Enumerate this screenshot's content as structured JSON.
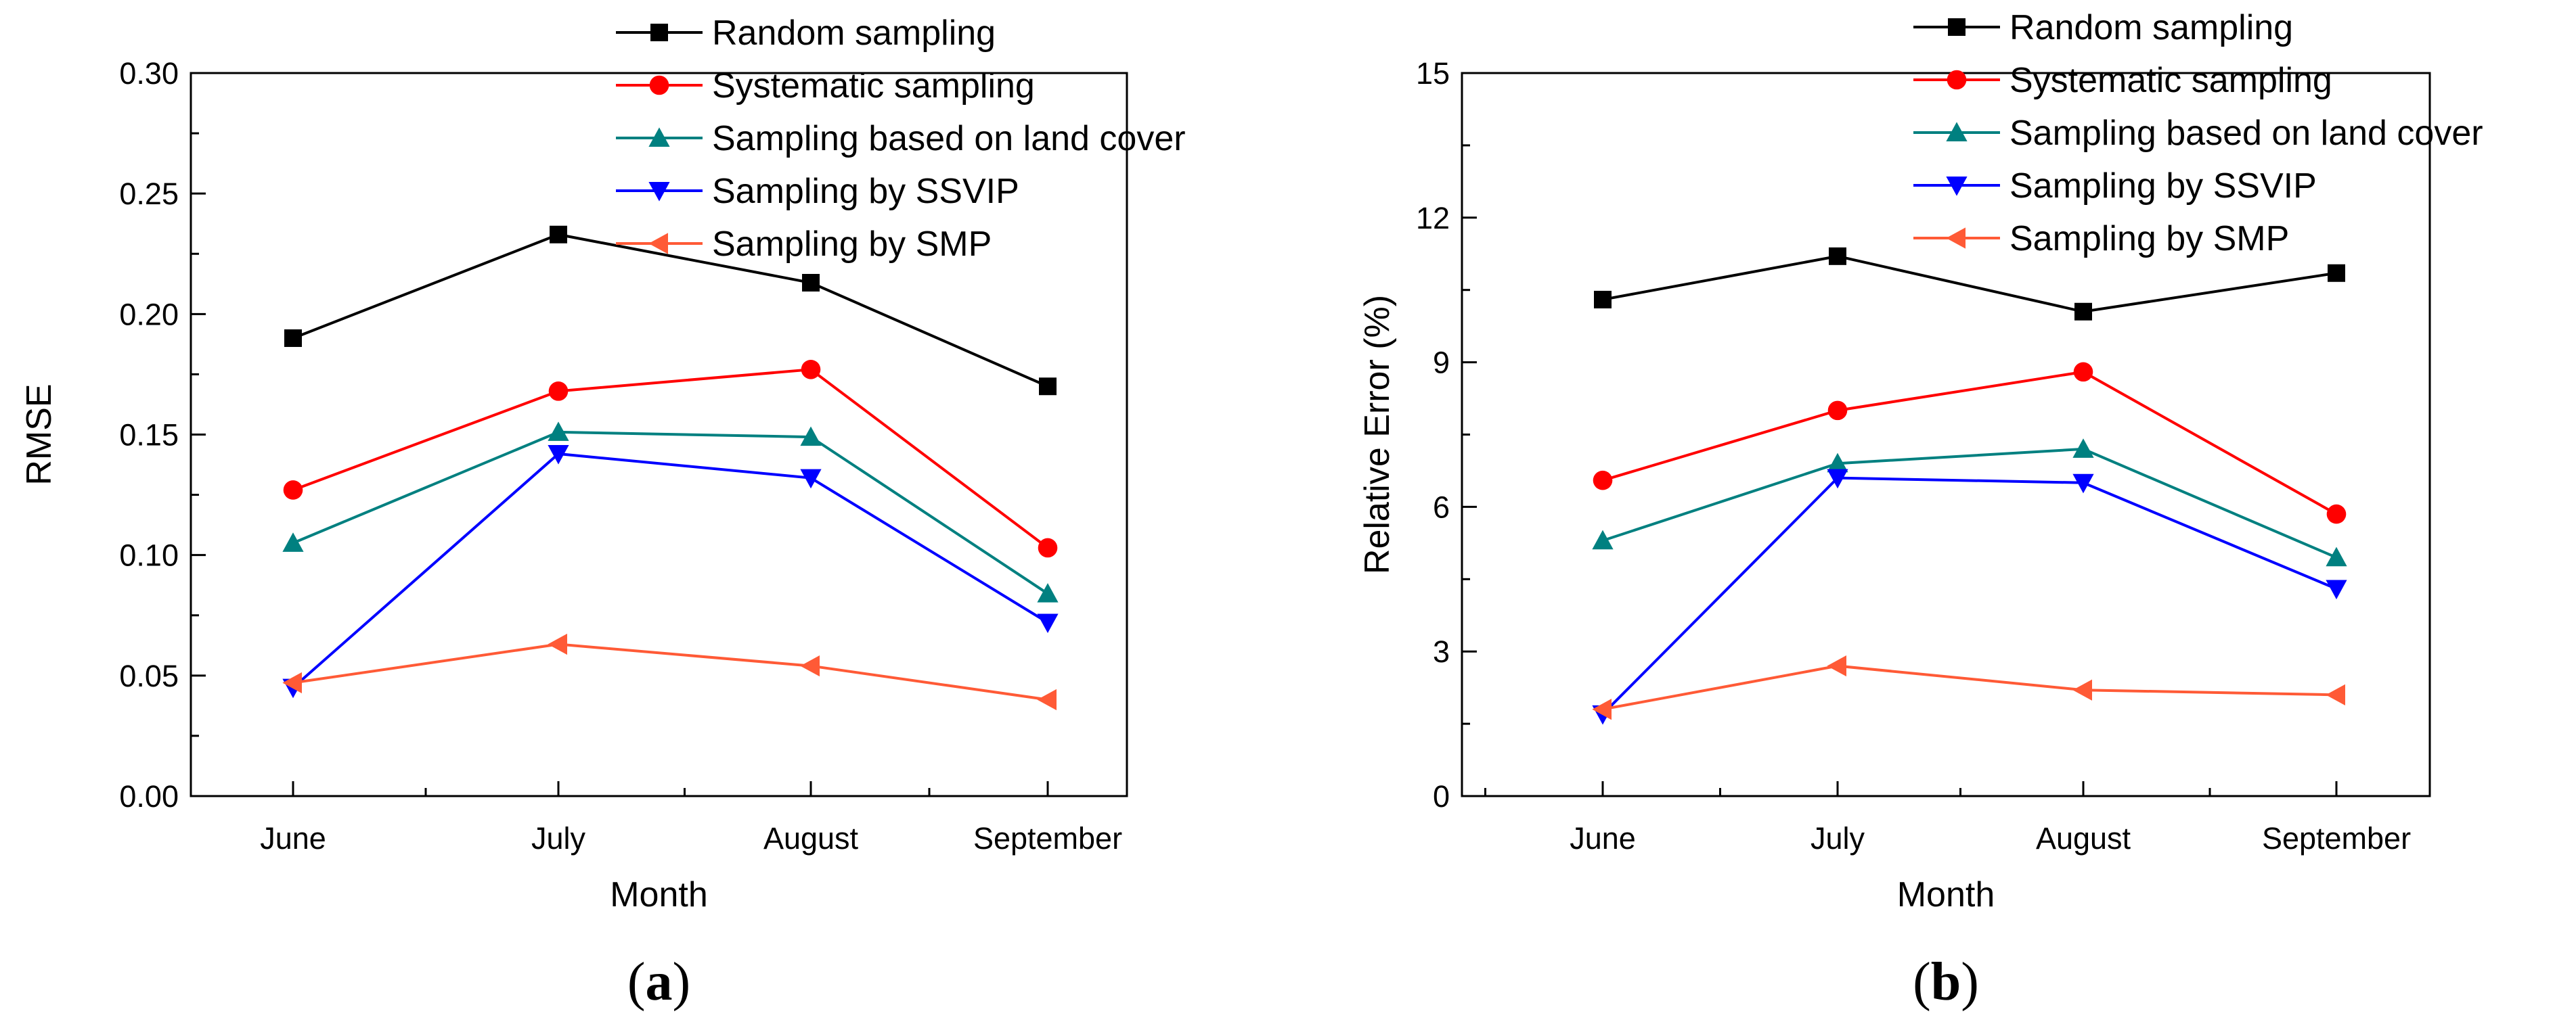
{
  "chart_data": [
    {
      "type": "line",
      "panel_label": "a",
      "categories": [
        "June",
        "July",
        "August",
        "September"
      ],
      "xlabel": "Month",
      "ylabel": "RMSE",
      "ylim": [
        0,
        0.3
      ],
      "yticks": [
        0.0,
        0.05,
        0.1,
        0.15,
        0.2,
        0.25,
        0.3
      ],
      "ytick_labels": [
        "0.00",
        "0.05",
        "0.10",
        "0.15",
        "0.20",
        "0.25",
        "0.30"
      ],
      "grid": false,
      "legend_position": "top-right",
      "series": [
        {
          "name": "Random sampling",
          "color": "#000000",
          "marker": "square",
          "values": [
            0.19,
            0.233,
            0.213,
            0.17
          ]
        },
        {
          "name": "Systematic sampling",
          "color": "#ff0000",
          "marker": "circle",
          "values": [
            0.127,
            0.168,
            0.177,
            0.103
          ]
        },
        {
          "name": "Sampling based on land cover",
          "color": "#008080",
          "marker": "triangle-up",
          "values": [
            0.105,
            0.151,
            0.149,
            0.084
          ]
        },
        {
          "name": "Sampling by SSVIP",
          "color": "#0000ff",
          "marker": "triangle-down",
          "values": [
            0.045,
            0.142,
            0.132,
            0.072
          ]
        },
        {
          "name": "Sampling by SMP",
          "color": "#ff5a36",
          "marker": "triangle-left",
          "values": [
            0.047,
            0.063,
            0.054,
            0.04
          ]
        }
      ]
    },
    {
      "type": "line",
      "panel_label": "b",
      "categories": [
        "June",
        "July",
        "August",
        "September"
      ],
      "xlabel": "Month",
      "ylabel": "Relative  Error (%)",
      "ylim": [
        0,
        15
      ],
      "yticks": [
        0,
        3,
        6,
        9,
        12,
        15
      ],
      "ytick_labels": [
        "0",
        "3",
        "6",
        "9",
        "12",
        "15"
      ],
      "grid": false,
      "legend_position": "top-right",
      "series": [
        {
          "name": "Random sampling",
          "color": "#000000",
          "marker": "square",
          "values": [
            10.3,
            11.2,
            10.05,
            10.85
          ]
        },
        {
          "name": "Systematic sampling",
          "color": "#ff0000",
          "marker": "circle",
          "values": [
            6.55,
            8.0,
            8.8,
            5.85
          ]
        },
        {
          "name": "Sampling based on land cover",
          "color": "#008080",
          "marker": "triangle-up",
          "values": [
            5.3,
            6.9,
            7.2,
            4.95
          ]
        },
        {
          "name": "Sampling by SSVIP",
          "color": "#0000ff",
          "marker": "triangle-down",
          "values": [
            1.7,
            6.6,
            6.5,
            4.3
          ]
        },
        {
          "name": "Sampling by SMP",
          "color": "#ff5a36",
          "marker": "triangle-left",
          "values": [
            1.8,
            2.7,
            2.2,
            2.1
          ]
        }
      ]
    }
  ]
}
